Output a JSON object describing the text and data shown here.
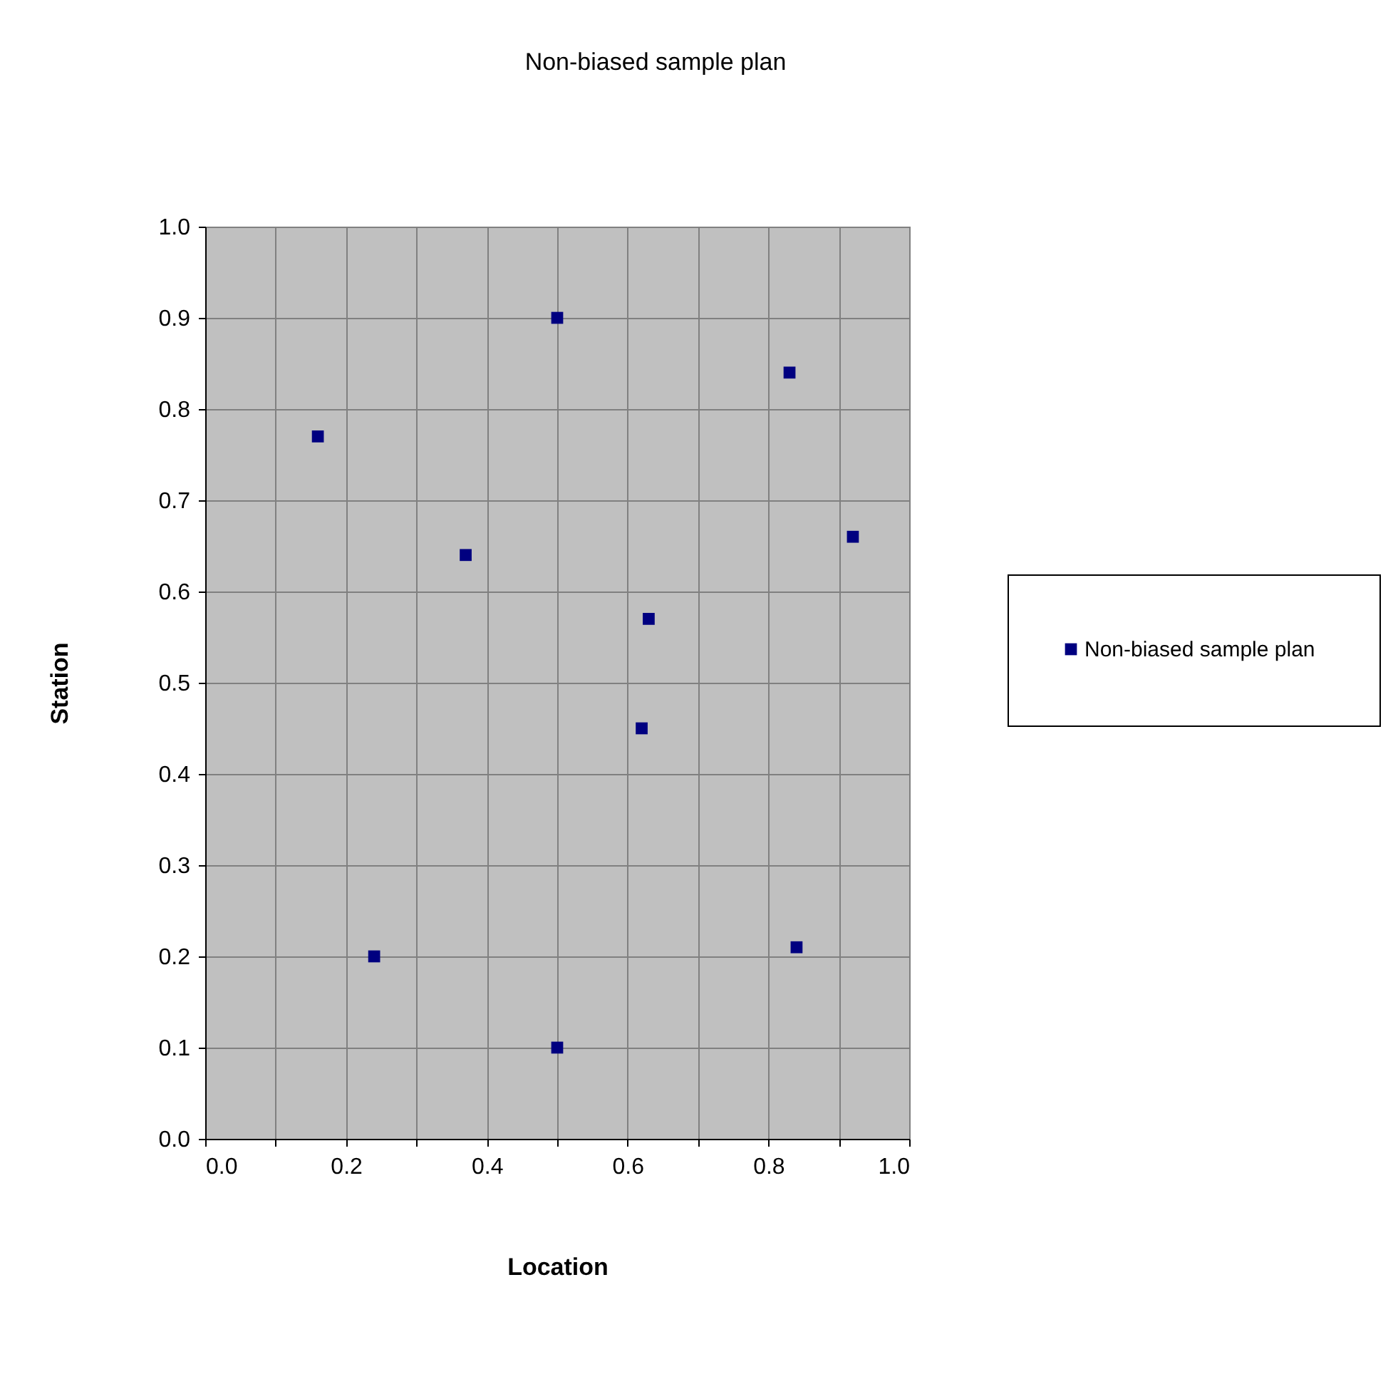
{
  "chart_data": {
    "type": "scatter",
    "title": "Non-biased sample plan",
    "xlabel": "Location",
    "ylabel": "Station",
    "series": [
      {
        "name": "Non-biased sample plan",
        "color": "#000080",
        "x": [
          0.16,
          0.5,
          0.83,
          0.92,
          0.37,
          0.63,
          0.62,
          0.24,
          0.84,
          0.5
        ],
        "values": [
          0.77,
          0.9,
          0.84,
          0.66,
          0.64,
          0.57,
          0.45,
          0.2,
          0.21,
          0.1
        ]
      }
    ],
    "xlim": [
      0,
      1
    ],
    "ylim": [
      0,
      1
    ],
    "xticks": [
      {
        "value": 0,
        "label": "0.0"
      },
      {
        "value": 0.1,
        "label": null
      },
      0.2,
      {
        "value": 0.3,
        "label": null
      },
      0.4,
      {
        "value": 0.5,
        "label": null
      },
      0.6,
      {
        "value": 0.7,
        "label": null
      },
      0.8,
      {
        "value": 0.9,
        "label": null
      },
      {
        "value": 1,
        "label": "1.0"
      }
    ],
    "yticks": [
      {
        "value": 0,
        "label": "0.0"
      },
      0.1,
      0.2,
      0.3,
      0.4,
      0.5,
      0.6,
      0.7,
      0.8,
      0.9,
      {
        "value": 1,
        "label": "1.0"
      }
    ],
    "grid": true,
    "legend": "right",
    "marker": "square"
  }
}
